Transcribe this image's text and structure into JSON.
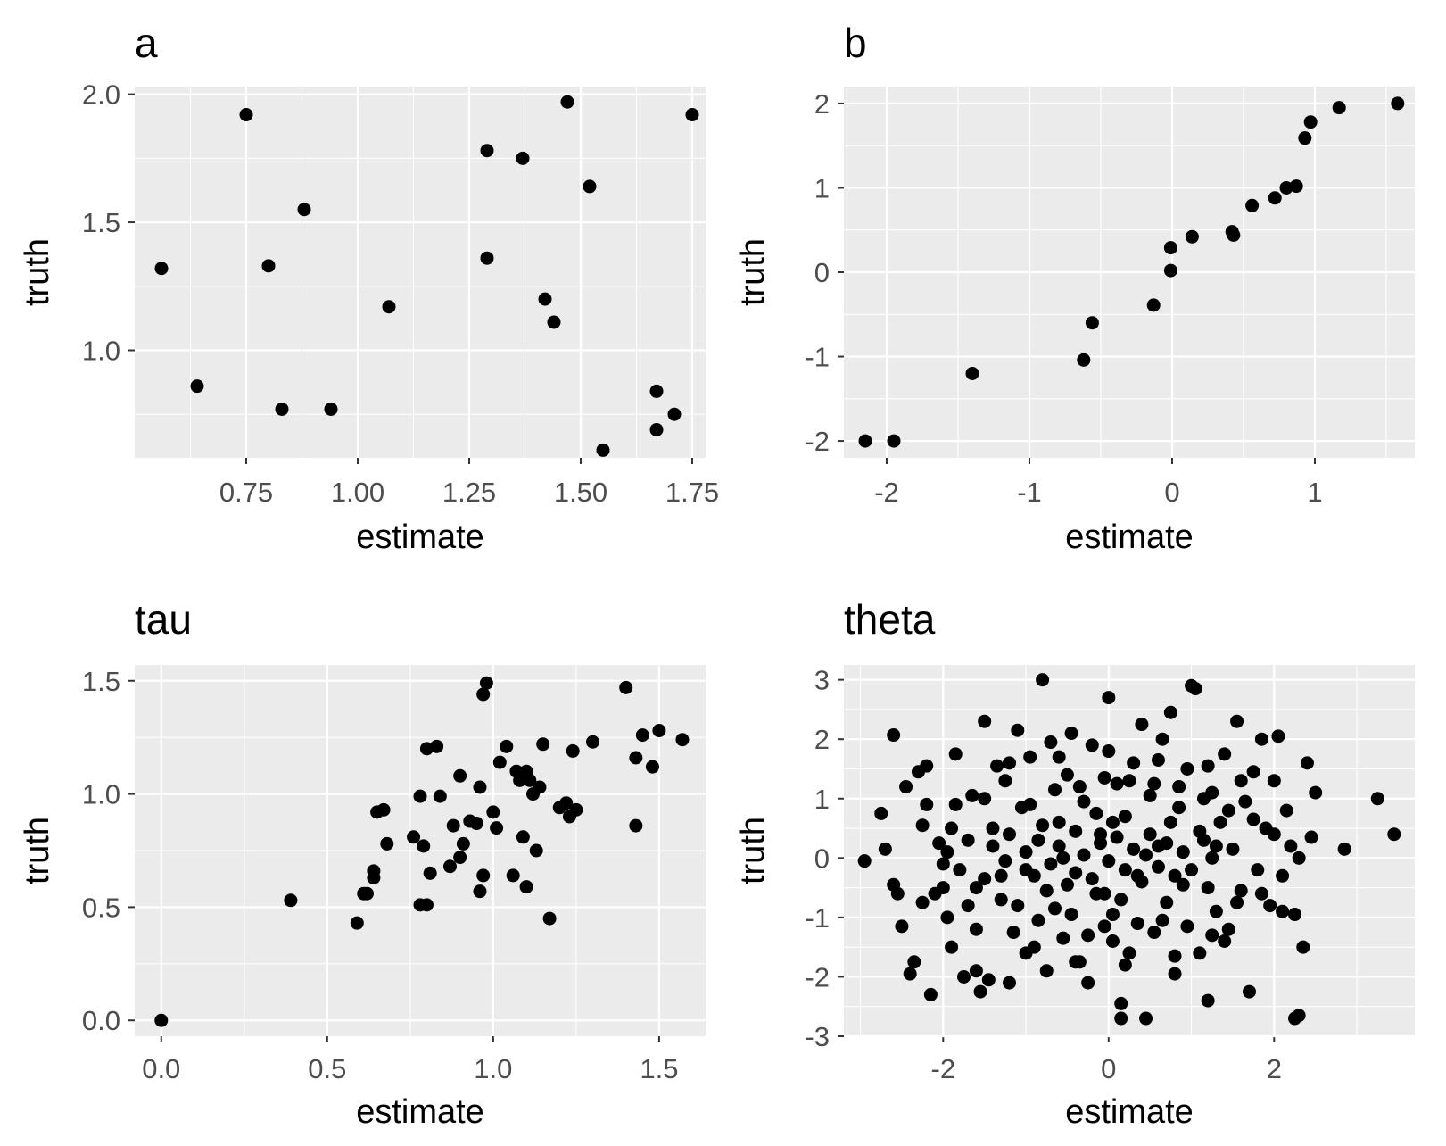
{
  "chart_data": [
    {
      "type": "scatter",
      "title": "a",
      "xlabel": "estimate",
      "ylabel": "truth",
      "xlim": [
        0.5,
        1.78
      ],
      "ylim": [
        0.58,
        2.03
      ],
      "xticks": [
        0.75,
        1.0,
        1.25,
        1.5,
        1.75
      ],
      "xtick_labels": [
        "0.75",
        "1.00",
        "1.25",
        "1.50",
        "1.75"
      ],
      "yticks": [
        1.0,
        1.5,
        2.0
      ],
      "ytick_labels": [
        "1.0",
        "1.5",
        "2.0"
      ],
      "grid": true,
      "points": [
        [
          0.56,
          1.32
        ],
        [
          0.64,
          0.86
        ],
        [
          0.75,
          1.92
        ],
        [
          0.8,
          1.33
        ],
        [
          0.83,
          0.77
        ],
        [
          0.88,
          1.55
        ],
        [
          0.94,
          0.77
        ],
        [
          1.07,
          1.17
        ],
        [
          1.29,
          1.78
        ],
        [
          1.29,
          1.36
        ],
        [
          1.37,
          1.75
        ],
        [
          1.42,
          1.2
        ],
        [
          1.44,
          1.11
        ],
        [
          1.47,
          1.97
        ],
        [
          1.52,
          1.64
        ],
        [
          1.55,
          0.61
        ],
        [
          1.67,
          0.84
        ],
        [
          1.67,
          0.69
        ],
        [
          1.71,
          0.75
        ],
        [
          1.75,
          1.92
        ]
      ]
    },
    {
      "type": "scatter",
      "title": "b",
      "xlabel": "estimate",
      "ylabel": "truth",
      "xlim": [
        -2.3,
        1.7
      ],
      "ylim": [
        -2.2,
        2.2
      ],
      "xticks": [
        -2,
        -1,
        0,
        1
      ],
      "xtick_labels": [
        "-2",
        "-1",
        "0",
        "1"
      ],
      "yticks": [
        -2,
        -1,
        0,
        1,
        2
      ],
      "ytick_labels": [
        "-2",
        "-1",
        "0",
        "1",
        "2"
      ],
      "grid": true,
      "points": [
        [
          -2.15,
          -2.0
        ],
        [
          -1.95,
          -2.0
        ],
        [
          -1.4,
          -1.2
        ],
        [
          -0.62,
          -1.04
        ],
        [
          -0.56,
          -0.6
        ],
        [
          -0.13,
          -0.39
        ],
        [
          -0.01,
          0.02
        ],
        [
          -0.01,
          0.29
        ],
        [
          0.14,
          0.42
        ],
        [
          0.42,
          0.48
        ],
        [
          0.43,
          0.44
        ],
        [
          0.56,
          0.79
        ],
        [
          0.72,
          0.88
        ],
        [
          0.8,
          1.0
        ],
        [
          0.87,
          1.02
        ],
        [
          0.93,
          1.59
        ],
        [
          0.97,
          1.78
        ],
        [
          1.17,
          1.95
        ],
        [
          1.58,
          2.0
        ]
      ]
    },
    {
      "type": "scatter",
      "title": "tau",
      "xlabel": "estimate",
      "ylabel": "truth",
      "xlim": [
        -0.08,
        1.64
      ],
      "ylim": [
        -0.07,
        1.57
      ],
      "xticks": [
        0.0,
        0.5,
        1.0,
        1.5
      ],
      "xtick_labels": [
        "0.0",
        "0.5",
        "1.0",
        "1.5"
      ],
      "yticks": [
        0.0,
        0.5,
        1.0,
        1.5
      ],
      "ytick_labels": [
        "0.0",
        "0.5",
        "1.0",
        "1.5"
      ],
      "grid": true,
      "points": [
        [
          0.0,
          0.0
        ],
        [
          0.39,
          0.53
        ],
        [
          0.59,
          0.43
        ],
        [
          0.61,
          0.56
        ],
        [
          0.62,
          0.56
        ],
        [
          0.64,
          0.66
        ],
        [
          0.64,
          0.63
        ],
        [
          0.65,
          0.92
        ],
        [
          0.67,
          0.93
        ],
        [
          0.68,
          0.78
        ],
        [
          0.76,
          0.81
        ],
        [
          0.78,
          0.99
        ],
        [
          0.78,
          0.51
        ],
        [
          0.79,
          0.77
        ],
        [
          0.8,
          0.51
        ],
        [
          0.81,
          0.65
        ],
        [
          0.8,
          1.2
        ],
        [
          0.83,
          1.21
        ],
        [
          0.84,
          0.99
        ],
        [
          0.88,
          0.86
        ],
        [
          0.87,
          0.68
        ],
        [
          0.9,
          0.72
        ],
        [
          0.91,
          0.78
        ],
        [
          0.93,
          0.88
        ],
        [
          0.9,
          1.08
        ],
        [
          0.95,
          0.87
        ],
        [
          0.96,
          1.03
        ],
        [
          0.96,
          0.57
        ],
        [
          0.97,
          0.64
        ],
        [
          0.97,
          1.44
        ],
        [
          0.98,
          1.49
        ],
        [
          1.0,
          0.92
        ],
        [
          1.01,
          0.85
        ],
        [
          1.02,
          1.14
        ],
        [
          1.04,
          1.21
        ],
        [
          1.06,
          0.64
        ],
        [
          1.07,
          1.1
        ],
        [
          1.08,
          1.06
        ],
        [
          1.09,
          0.81
        ],
        [
          1.1,
          0.59
        ],
        [
          1.1,
          1.1
        ],
        [
          1.11,
          1.06
        ],
        [
          1.12,
          1.0
        ],
        [
          1.13,
          0.75
        ],
        [
          1.14,
          1.03
        ],
        [
          1.15,
          1.22
        ],
        [
          1.17,
          0.45
        ],
        [
          1.2,
          0.94
        ],
        [
          1.22,
          0.96
        ],
        [
          1.23,
          0.9
        ],
        [
          1.24,
          1.19
        ],
        [
          1.25,
          0.93
        ],
        [
          1.3,
          1.23
        ],
        [
          1.4,
          1.47
        ],
        [
          1.43,
          1.16
        ],
        [
          1.43,
          0.86
        ],
        [
          1.45,
          1.26
        ],
        [
          1.48,
          1.12
        ],
        [
          1.5,
          1.28
        ],
        [
          1.57,
          1.24
        ]
      ]
    },
    {
      "type": "scatter",
      "title": "theta",
      "xlabel": "estimate",
      "ylabel": "truth",
      "xlim": [
        -3.2,
        3.7
      ],
      "ylim": [
        -3.0,
        3.25
      ],
      "xticks": [
        -2,
        0,
        2
      ],
      "xtick_labels": [
        "-2",
        "0",
        "2"
      ],
      "yticks": [
        -3,
        -2,
        -1,
        0,
        1,
        2,
        3
      ],
      "ytick_labels": [
        "-3",
        "-2",
        "-1",
        "0",
        "1",
        "2",
        "3"
      ],
      "grid": true,
      "points": [
        [
          -2.95,
          -0.05
        ],
        [
          -2.75,
          0.75
        ],
        [
          -2.7,
          0.15
        ],
        [
          -2.6,
          2.07
        ],
        [
          -2.6,
          -0.45
        ],
        [
          -2.55,
          -0.6
        ],
        [
          -2.5,
          -1.15
        ],
        [
          -2.45,
          1.2
        ],
        [
          -2.4,
          -1.95
        ],
        [
          -2.35,
          -1.75
        ],
        [
          -2.3,
          1.45
        ],
        [
          -2.2,
          1.55
        ],
        [
          -2.25,
          0.55
        ],
        [
          -2.25,
          -0.75
        ],
        [
          -2.15,
          -2.3
        ],
        [
          -2.05,
          0.25
        ],
        [
          -2.0,
          -0.5
        ],
        [
          -1.95,
          -1.0
        ],
        [
          -1.9,
          -1.5
        ],
        [
          -1.85,
          1.75
        ],
        [
          -1.85,
          0.9
        ],
        [
          -1.75,
          -2.0
        ],
        [
          -1.7,
          -0.8
        ],
        [
          -1.65,
          1.05
        ],
        [
          -1.6,
          -1.9
        ],
        [
          -1.55,
          -2.25
        ],
        [
          -1.5,
          -0.35
        ],
        [
          -1.5,
          2.3
        ],
        [
          -1.45,
          -2.05
        ],
        [
          -1.4,
          0.5
        ],
        [
          -1.35,
          1.55
        ],
        [
          -1.3,
          -0.7
        ],
        [
          -1.25,
          1.3
        ],
        [
          -1.2,
          -2.1
        ],
        [
          -1.15,
          -1.25
        ],
        [
          -1.1,
          2.15
        ],
        [
          -1.05,
          0.85
        ],
        [
          -1.0,
          -0.2
        ],
        [
          -0.95,
          1.7
        ],
        [
          -0.9,
          -1.5
        ],
        [
          -0.85,
          0.3
        ],
        [
          -0.8,
          3.0
        ],
        [
          -0.75,
          -1.9
        ],
        [
          -0.7,
          1.95
        ],
        [
          -0.65,
          -0.85
        ],
        [
          -0.6,
          0.6
        ],
        [
          -0.55,
          -1.35
        ],
        [
          -0.5,
          1.4
        ],
        [
          -0.45,
          2.1
        ],
        [
          -0.4,
          -0.25
        ],
        [
          -0.35,
          -1.75
        ],
        [
          -0.3,
          0.95
        ],
        [
          -0.25,
          -2.1
        ],
        [
          -0.2,
          1.9
        ],
        [
          -0.15,
          -0.6
        ],
        [
          -0.1,
          0.4
        ],
        [
          -0.05,
          -1.15
        ],
        [
          0.0,
          2.7
        ],
        [
          0.05,
          -0.95
        ],
        [
          0.1,
          1.25
        ],
        [
          0.15,
          -2.45
        ],
        [
          0.15,
          -2.7
        ],
        [
          0.2,
          0.7
        ],
        [
          0.25,
          -1.6
        ],
        [
          0.3,
          1.6
        ],
        [
          0.35,
          -0.3
        ],
        [
          0.4,
          2.25
        ],
        [
          0.45,
          -2.7
        ],
        [
          0.5,
          1.05
        ],
        [
          0.55,
          -1.25
        ],
        [
          0.6,
          0.2
        ],
        [
          0.65,
          2.0
        ],
        [
          0.7,
          -0.75
        ],
        [
          0.75,
          2.45
        ],
        [
          0.8,
          -1.95
        ],
        [
          0.85,
          0.85
        ],
        [
          0.9,
          -0.45
        ],
        [
          0.95,
          1.5
        ],
        [
          1.0,
          2.9
        ],
        [
          1.05,
          2.85
        ],
        [
          1.1,
          -1.6
        ],
        [
          1.15,
          0.3
        ],
        [
          1.2,
          -2.4
        ],
        [
          1.25,
          1.1
        ],
        [
          1.3,
          -0.9
        ],
        [
          1.35,
          0.6
        ],
        [
          1.4,
          1.75
        ],
        [
          1.45,
          -1.2
        ],
        [
          1.5,
          0.15
        ],
        [
          1.55,
          2.3
        ],
        [
          1.6,
          -0.55
        ],
        [
          1.65,
          0.95
        ],
        [
          1.7,
          -2.25
        ],
        [
          1.75,
          1.45
        ],
        [
          1.8,
          -0.2
        ],
        [
          1.85,
          2.0
        ],
        [
          1.9,
          0.5
        ],
        [
          1.95,
          -0.8
        ],
        [
          2.0,
          1.3
        ],
        [
          2.05,
          2.05
        ],
        [
          2.1,
          -0.9
        ],
        [
          2.15,
          0.8
        ],
        [
          2.2,
          0.2
        ],
        [
          2.25,
          -0.95
        ],
        [
          2.25,
          -2.7
        ],
        [
          2.3,
          -2.65
        ],
        [
          2.35,
          -1.5
        ],
        [
          2.4,
          1.6
        ],
        [
          2.45,
          0.35
        ],
        [
          2.5,
          1.1
        ],
        [
          2.85,
          0.15
        ],
        [
          3.25,
          1.0
        ],
        [
          3.45,
          0.4
        ],
        [
          -1.0,
          0.1
        ],
        [
          -0.9,
          -0.3
        ],
        [
          -0.8,
          0.55
        ],
        [
          -0.7,
          -0.1
        ],
        [
          -0.6,
          0.2
        ],
        [
          -0.5,
          -0.45
        ],
        [
          -0.4,
          0.45
        ],
        [
          -0.3,
          0.05
        ],
        [
          -0.2,
          -0.35
        ],
        [
          -0.1,
          0.25
        ],
        [
          0.0,
          -0.05
        ],
        [
          0.1,
          0.35
        ],
        [
          0.2,
          -0.2
        ],
        [
          0.3,
          0.15
        ],
        [
          0.4,
          -0.4
        ],
        [
          0.5,
          0.4
        ],
        [
          0.6,
          -0.15
        ],
        [
          0.7,
          0.25
        ],
        [
          0.8,
          -0.3
        ],
        [
          0.9,
          0.1
        ],
        [
          1.0,
          -0.2
        ],
        [
          1.1,
          0.45
        ],
        [
          1.2,
          -0.5
        ],
        [
          1.3,
          0.2
        ],
        [
          -1.2,
          0.4
        ],
        [
          -1.3,
          -0.3
        ],
        [
          -1.4,
          0.2
        ],
        [
          -1.6,
          -0.5
        ],
        [
          -1.7,
          0.3
        ],
        [
          -1.8,
          -0.2
        ],
        [
          -1.9,
          0.5
        ],
        [
          -2.0,
          -0.1
        ],
        [
          -1.1,
          -0.8
        ],
        [
          -0.95,
          0.9
        ],
        [
          -0.85,
          -1.05
        ],
        [
          -0.65,
          1.15
        ],
        [
          -0.45,
          -0.95
        ],
        [
          -0.35,
          1.2
        ],
        [
          -0.25,
          -1.3
        ],
        [
          -0.05,
          1.35
        ],
        [
          0.05,
          -1.4
        ],
        [
          0.25,
          1.3
        ],
        [
          0.35,
          -1.1
        ],
        [
          0.55,
          1.25
        ],
        [
          0.65,
          -1.05
        ],
        [
          0.85,
          1.2
        ],
        [
          0.95,
          -1.15
        ],
        [
          1.15,
          1.0
        ],
        [
          1.25,
          -1.3
        ],
        [
          1.45,
          0.8
        ],
        [
          1.55,
          -0.75
        ],
        [
          1.75,
          0.65
        ],
        [
          1.85,
          -0.6
        ],
        [
          2.0,
          0.4
        ],
        [
          -1.5,
          1.0
        ],
        [
          -1.6,
          -1.2
        ],
        [
          -1.2,
          1.6
        ],
        [
          -1.0,
          -1.6
        ],
        [
          -0.6,
          1.7
        ],
        [
          -0.4,
          -1.75
        ],
        [
          0.0,
          1.8
        ],
        [
          0.2,
          -1.8
        ],
        [
          0.6,
          1.65
        ],
        [
          0.8,
          -1.65
        ],
        [
          1.2,
          1.55
        ],
        [
          1.4,
          -1.4
        ],
        [
          1.6,
          1.3
        ],
        [
          -2.1,
          -0.6
        ],
        [
          -2.2,
          0.9
        ],
        [
          -1.95,
          0.1
        ],
        [
          2.1,
          -0.3
        ],
        [
          2.3,
          0.0
        ],
        [
          -0.15,
          0.75
        ],
        [
          0.15,
          -0.7
        ],
        [
          -0.75,
          -0.55
        ],
        [
          0.75,
          0.6
        ],
        [
          -1.25,
          -0.05
        ],
        [
          1.25,
          0.0
        ],
        [
          -0.55,
          0.0
        ],
        [
          0.45,
          0.05
        ],
        [
          -0.05,
          -0.6
        ],
        [
          0.05,
          0.6
        ]
      ]
    }
  ]
}
